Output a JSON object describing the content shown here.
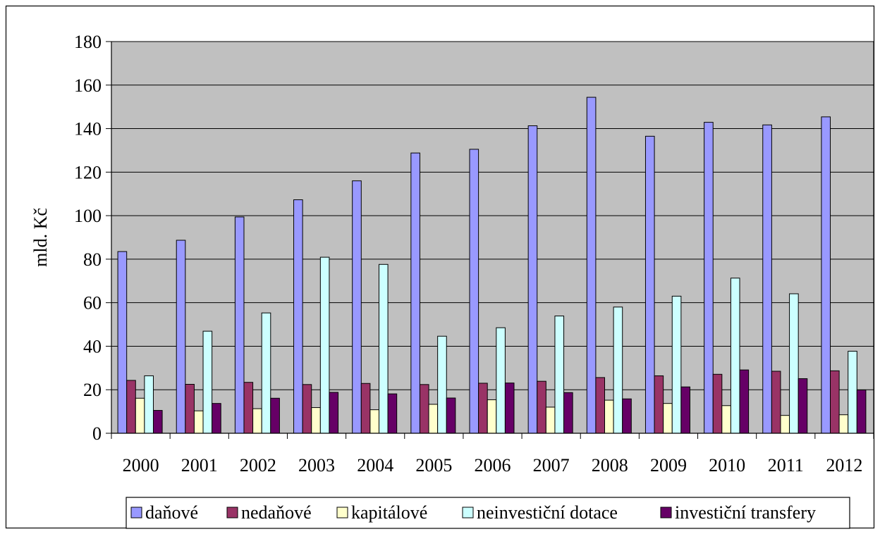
{
  "chart_data": {
    "type": "bar",
    "title": "",
    "xlabel": "",
    "ylabel": "mld. Kč",
    "ylim": [
      0,
      180
    ],
    "yticks": [
      0,
      20,
      40,
      60,
      80,
      100,
      120,
      140,
      160,
      180
    ],
    "grid": true,
    "legend_position": "bottom",
    "plot_background": "#C0C0C0",
    "categories": [
      "2000",
      "2001",
      "2002",
      "2003",
      "2004",
      "2005",
      "2006",
      "2007",
      "2008",
      "2009",
      "2010",
      "2011",
      "2012"
    ],
    "series": [
      {
        "name": "daňové",
        "color": "#9999FF",
        "values": [
          83.5,
          88.7,
          99.4,
          107.3,
          116.0,
          128.8,
          130.5,
          141.3,
          154.4,
          136.5,
          142.9,
          141.7,
          145.4
        ]
      },
      {
        "name": "nedaňové",
        "color": "#993366",
        "values": [
          24.3,
          22.5,
          23.4,
          22.4,
          22.9,
          22.4,
          23.0,
          23.9,
          25.6,
          26.4,
          27.1,
          28.5,
          28.7
        ]
      },
      {
        "name": "kapitálové",
        "color": "#FFFFCC",
        "values": [
          16.1,
          10.3,
          11.3,
          11.8,
          10.8,
          13.3,
          15.4,
          12.0,
          15.2,
          13.7,
          12.7,
          8.2,
          8.5
        ]
      },
      {
        "name": "neinvestiční dotace",
        "color": "#CCFFFF",
        "values": [
          26.4,
          46.9,
          55.3,
          80.9,
          77.6,
          44.6,
          48.5,
          53.9,
          58.0,
          63.0,
          71.3,
          64.1,
          37.7
        ]
      },
      {
        "name": "investiční transfery",
        "color": "#660066",
        "values": [
          10.5,
          13.7,
          16.1,
          18.8,
          18.1,
          16.2,
          23.1,
          18.7,
          15.8,
          21.3,
          29.1,
          25.1,
          19.9
        ]
      }
    ]
  }
}
